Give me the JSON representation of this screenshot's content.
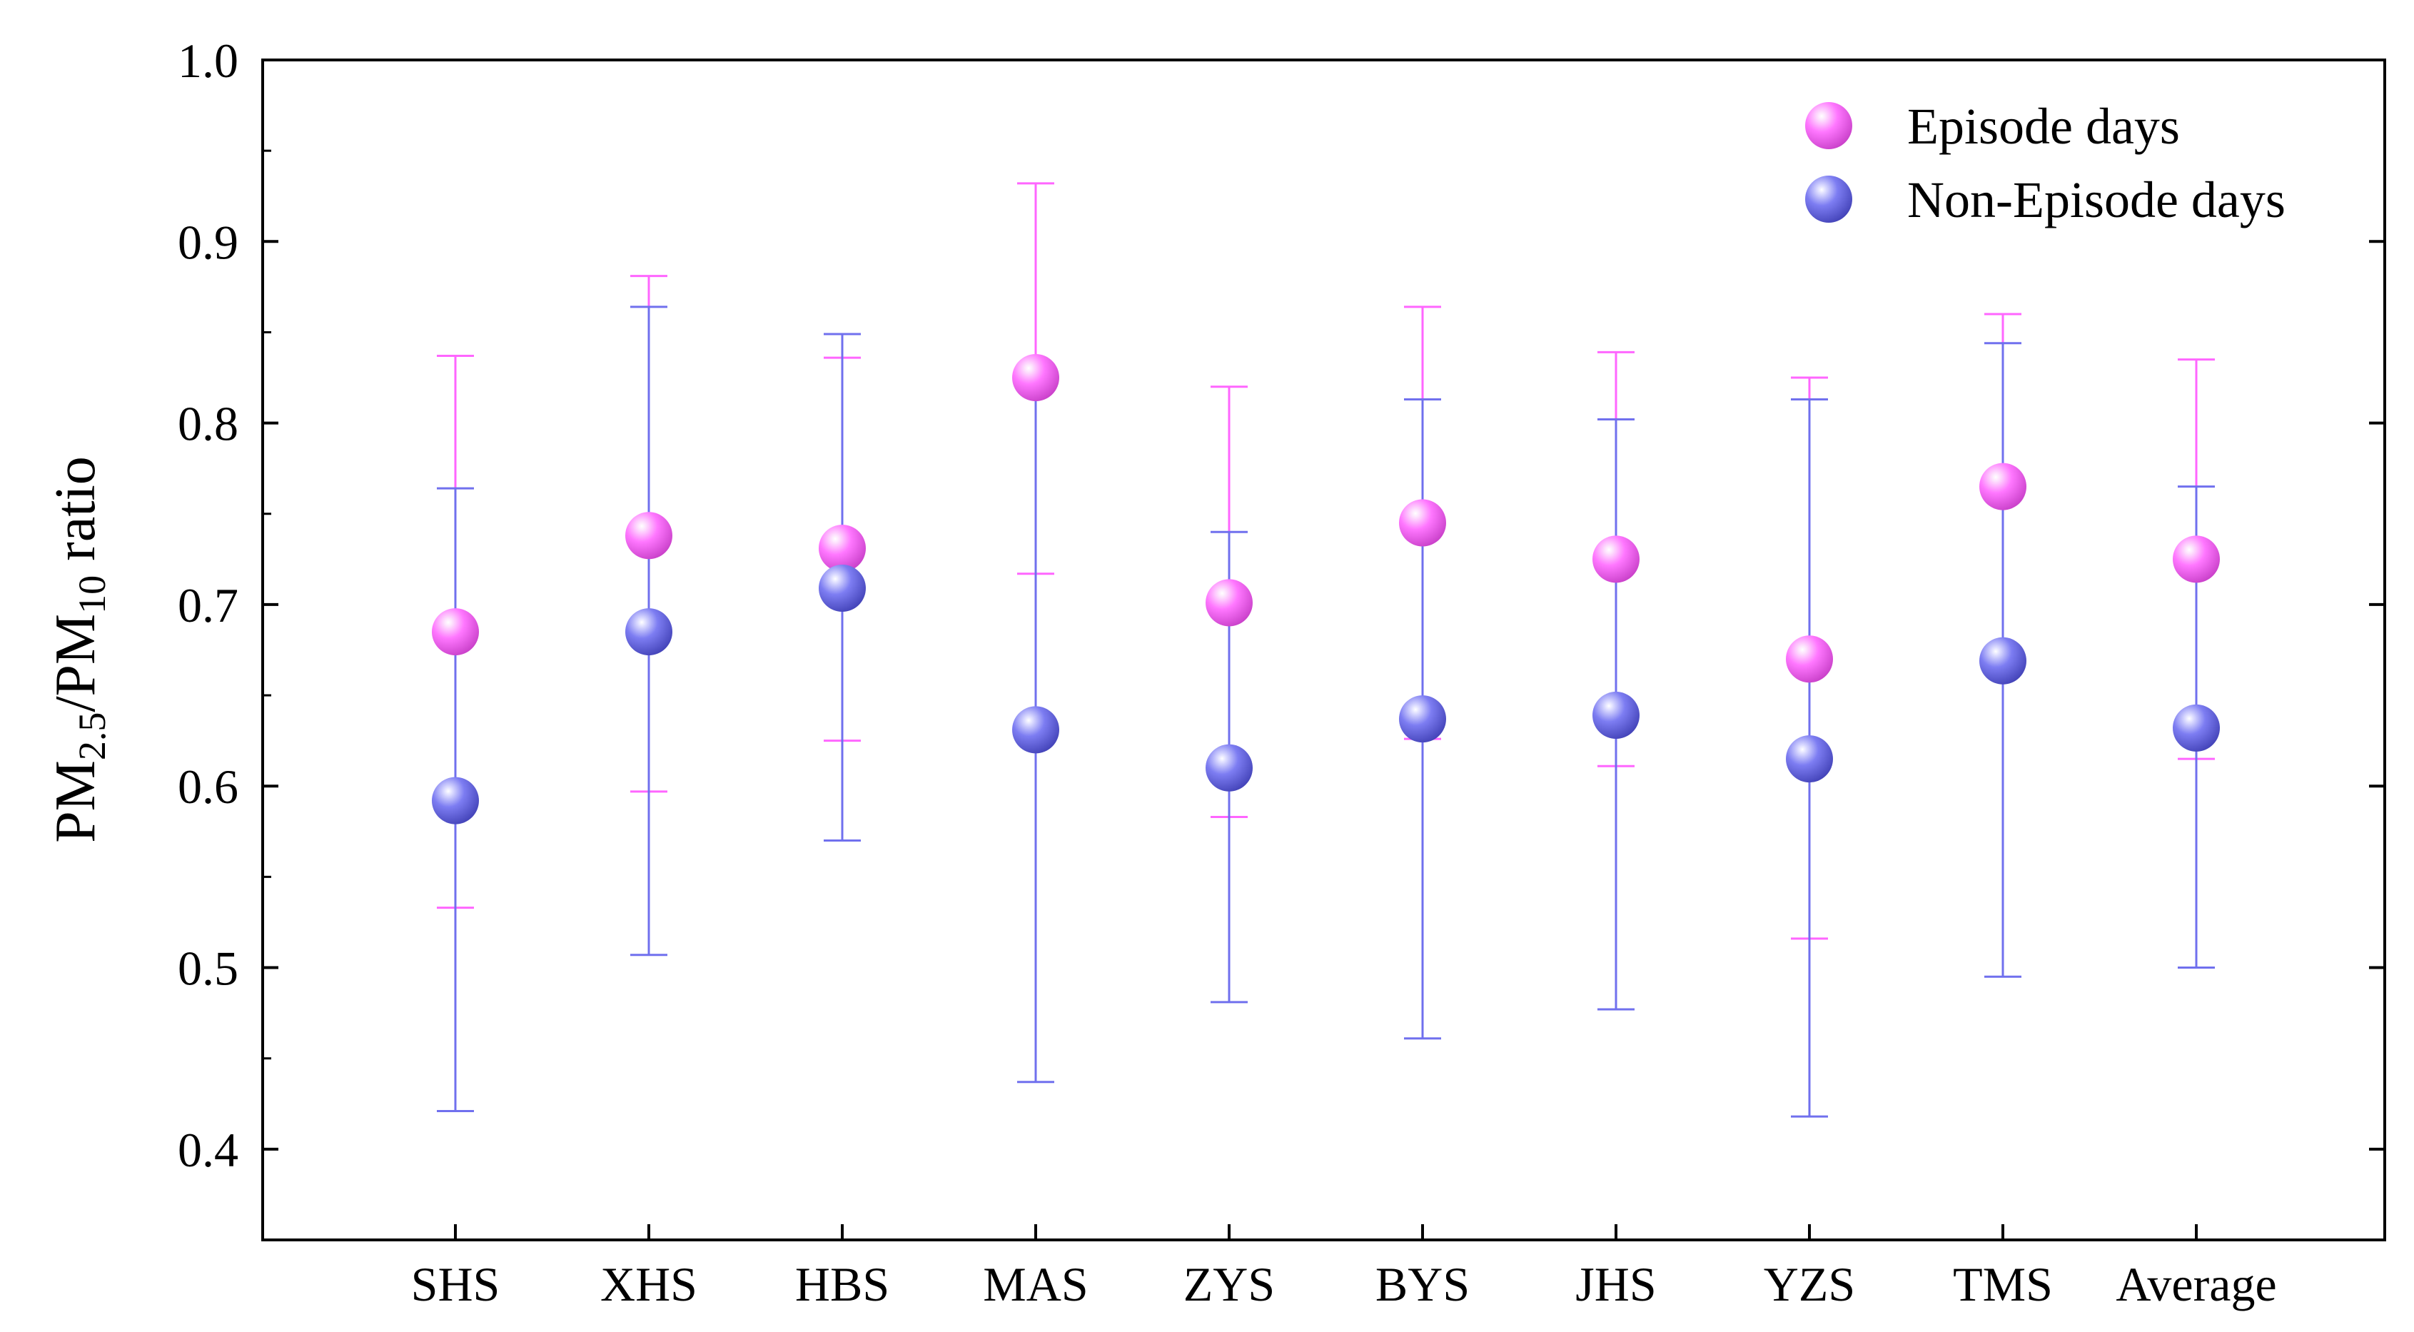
{
  "chart_data": {
    "type": "scatter",
    "title": "",
    "xlabel": "",
    "ylabel": {
      "parts": [
        {
          "text": "PM",
          "sub": false
        },
        {
          "text": "2.5",
          "sub": true
        },
        {
          "text": "/PM",
          "sub": false
        },
        {
          "text": "10",
          "sub": true
        },
        {
          "text": " ratio",
          "sub": false
        }
      ]
    },
    "ylim": [
      0.35,
      1.0
    ],
    "yticks": [
      0.4,
      0.5,
      0.6,
      0.7,
      0.8,
      0.9,
      1.0
    ],
    "ytick_labels": [
      "0.4",
      "0.5",
      "0.6",
      "0.7",
      "0.8",
      "0.9",
      "1.0"
    ],
    "categories": [
      "SHS",
      "XHS",
      "HBS",
      "MAS",
      "ZYS",
      "BYS",
      "JHS",
      "YZS",
      "TMS",
      "Average"
    ],
    "series": [
      {
        "name": "Episode days",
        "color": "#ff66ff",
        "values": [
          0.685,
          0.738,
          0.731,
          0.825,
          0.701,
          0.745,
          0.725,
          0.67,
          0.765,
          0.725
        ],
        "lower": [
          0.533,
          0.597,
          0.625,
          0.717,
          0.583,
          0.626,
          0.611,
          0.516,
          0.671,
          0.615
        ],
        "upper": [
          0.837,
          0.881,
          0.836,
          0.932,
          0.82,
          0.864,
          0.839,
          0.825,
          0.86,
          0.835
        ]
      },
      {
        "name": "Non-Episode days",
        "color": "#7070ee",
        "values": [
          0.592,
          0.685,
          0.709,
          0.631,
          0.61,
          0.637,
          0.639,
          0.615,
          0.669,
          0.632
        ],
        "lower": [
          0.421,
          0.507,
          0.57,
          0.437,
          0.481,
          0.461,
          0.477,
          0.418,
          0.495,
          0.5
        ],
        "upper": [
          0.764,
          0.864,
          0.849,
          0.825,
          0.74,
          0.813,
          0.802,
          0.813,
          0.844,
          0.765
        ]
      }
    ],
    "legend": {
      "position": "top-right",
      "entries": [
        "Episode days",
        "Non-Episode days"
      ]
    },
    "grid": false
  }
}
